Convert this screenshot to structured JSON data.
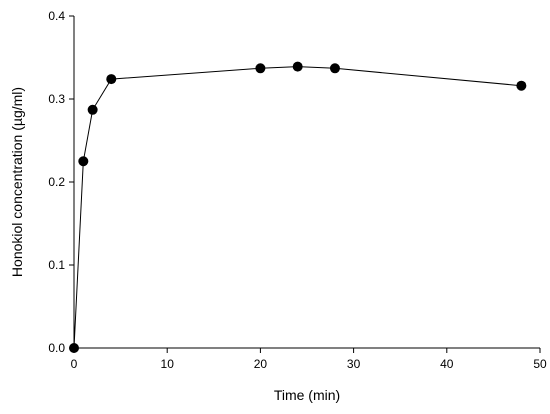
{
  "chart_data": {
    "type": "line",
    "title": "",
    "xlabel": "Time (min)",
    "ylabel": "Honokiol concentration (µg/ml)",
    "xlim": [
      0,
      50
    ],
    "ylim": [
      0,
      0.4
    ],
    "xticks": [
      0,
      10,
      20,
      30,
      40,
      50
    ],
    "xtick_labels": [
      "0",
      "10",
      "20",
      "30",
      "40",
      "50"
    ],
    "yticks": [
      0,
      0.1,
      0.2,
      0.3,
      0.4
    ],
    "ytick_labels": [
      "0.0",
      "0.1",
      "0.2",
      "0.3",
      "0.4"
    ],
    "grid": false,
    "legend": "none",
    "series": [
      {
        "x": [
          0,
          1,
          2,
          4,
          20,
          24,
          28,
          48
        ],
        "y": [
          0.0,
          0.225,
          0.287,
          0.324,
          0.337,
          0.339,
          0.337,
          0.316
        ],
        "color": "#000000",
        "marker": "filled-circle"
      }
    ]
  }
}
